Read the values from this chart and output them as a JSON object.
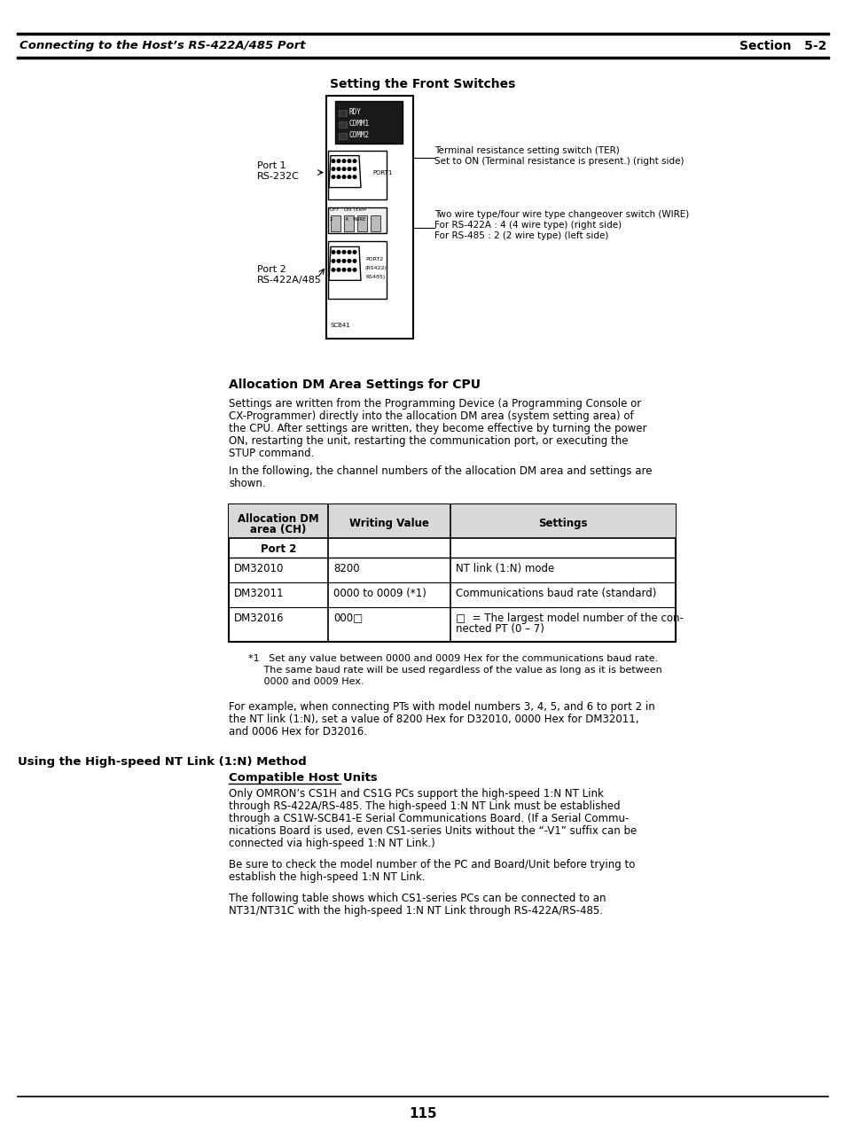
{
  "page_title_left": "Connecting to the Host’s RS-422A/485 Port",
  "page_title_right": "Section   5-2",
  "section_title": "Setting the Front Switches",
  "alloc_heading": "Allocation DM Area Settings for CPU",
  "alloc_para1": "Settings are written from the Programming Device (a Programming Console or\nCX-Programmer) directly into the allocation DM area (system setting area) of\nthe CPU. After settings are written, they become effective by turning the power\nON, restarting the unit, restarting the communication port, or executing the\nSTUP command.",
  "alloc_para2": "In the following, the channel numbers of the allocation DM area and settings are\nshown.",
  "table_headers": [
    "Allocation DM\narea (CH)",
    "Writing Value",
    "Settings"
  ],
  "table_subheader": "Port 2",
  "table_rows": [
    [
      "DM32010",
      "8200",
      "NT link (1:N) mode"
    ],
    [
      "DM32011",
      "0000 to 0009 (*1)",
      "Communications baud rate (standard)"
    ],
    [
      "DM32016",
      "000□",
      "□  = The largest model number of the con-\nnected PT (0 – 7)"
    ]
  ],
  "footnote": "*1   Set any value between 0000 and 0009 Hex for the communications baud rate.\n     The same baud rate will be used regardless of the value as long as it is between\n     0000 and 0009 Hex.",
  "example_para": "For example, when connecting PTs with model numbers 3, 4, 5, and 6 to port 2 in\nthe NT link (1:N), set a value of 8200 Hex for D32010, 0000 Hex for DM32011,\nand 0006 Hex for D32016.",
  "highspeed_heading": "Using the High-speed NT Link (1:N) Method",
  "compatible_heading": "Compatible Host Units",
  "compatible_para": "Only OMRON’s CS1H and CS1G PCs support the high-speed 1:N NT Link\nthrough RS-422A/RS-485. The high-speed 1:N NT Link must be established\nthrough a CS1W-SCB41-E Serial Communications Board. (If a Serial Commu-\nnications Board is used, even CS1-series Units without the “-V1” suffix can be\nconnected via high-speed 1:N NT Link.)",
  "be_sure_para": "Be sure to check the model number of the PC and Board/Unit before trying to\nestablish the high-speed 1:N NT Link.",
  "following_para": "The following table shows which CS1-series PCs can be connected to an\nNT31/NT31C with the high-speed 1:N NT Link through RS-422A/RS-485.",
  "page_number": "115",
  "bg_color": "#ffffff",
  "text_color": "#000000",
  "header_line_color": "#000000"
}
